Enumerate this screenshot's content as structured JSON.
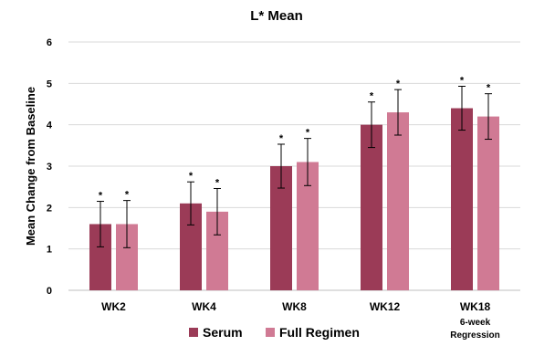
{
  "chart_data": {
    "type": "bar",
    "title": "L* Mean",
    "ylabel": "Mean Change from Baseline",
    "xlabel": "",
    "ylim": [
      0,
      6
    ],
    "yticks": [
      0,
      1,
      2,
      3,
      4,
      5,
      6
    ],
    "grid": true,
    "legend_position": "bottom",
    "categories": [
      "WK2",
      "WK4",
      "WK8",
      "WK12",
      "WK18"
    ],
    "category_sublabels": [
      "",
      "",
      "",
      "",
      "6-week Regression"
    ],
    "series": [
      {
        "name": "Serum",
        "color": "#9b3b57",
        "values": [
          1.6,
          2.1,
          3.0,
          4.0,
          4.4
        ],
        "error": [
          0.55,
          0.52,
          0.53,
          0.55,
          0.53
        ],
        "annotations": [
          "*",
          "*",
          "*",
          "*",
          "*"
        ]
      },
      {
        "name": "Full Regimen",
        "color": "#d07a94",
        "values": [
          1.6,
          1.9,
          3.1,
          4.3,
          4.2
        ],
        "error": [
          0.57,
          0.56,
          0.57,
          0.55,
          0.55
        ],
        "annotations": [
          "*",
          "*",
          "*",
          "*",
          "*"
        ]
      }
    ]
  }
}
